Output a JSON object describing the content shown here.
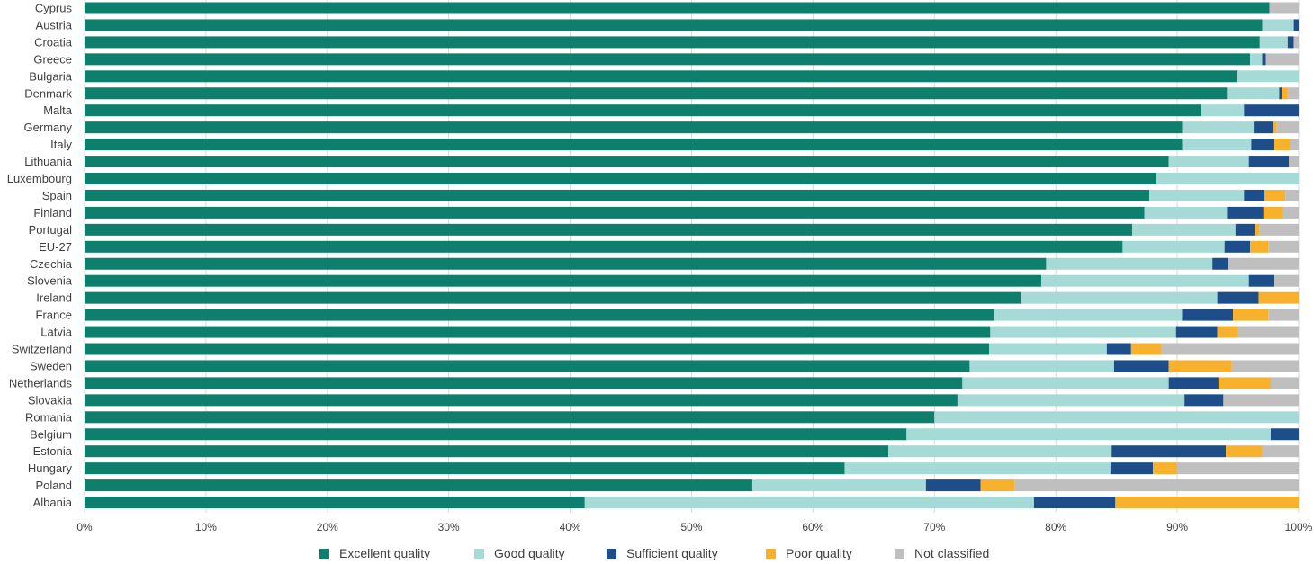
{
  "chart_data": {
    "type": "bar",
    "orientation": "horizontal",
    "stacked": true,
    "title": "",
    "xlabel": "",
    "ylabel": "",
    "xlim": [
      0,
      100
    ],
    "x_ticks": [
      "0%",
      "10%",
      "20%",
      "30%",
      "40%",
      "50%",
      "60%",
      "70%",
      "80%",
      "90%",
      "100%"
    ],
    "grid": true,
    "legend_position": "bottom",
    "categories": [
      "Cyprus",
      "Austria",
      "Croatia",
      "Greece",
      "Bulgaria",
      "Denmark",
      "Malta",
      "Germany",
      "Italy",
      "Lithuania",
      "Luxembourg",
      "Spain",
      "Finland",
      "Portugal",
      "EU-27",
      "Czechia",
      "Slovenia",
      "Ireland",
      "France",
      "Latvia",
      "Switzerland",
      "Sweden",
      "Netherlands",
      "Slovakia",
      "Romania",
      "Belgium",
      "Estonia",
      "Hungary",
      "Poland",
      "Albania"
    ],
    "series": [
      {
        "name": "Excellent quality",
        "color": "#0e7f6d",
        "values": [
          97.6,
          97.0,
          96.8,
          96.0,
          94.9,
          94.1,
          92.0,
          90.4,
          90.4,
          89.3,
          88.3,
          87.7,
          87.3,
          86.3,
          85.5,
          79.2,
          78.8,
          77.1,
          74.9,
          74.6,
          74.5,
          72.9,
          72.3,
          71.9,
          70.0,
          67.7,
          66.2,
          62.6,
          55.0,
          41.2
        ]
      },
      {
        "name": "Good quality",
        "color": "#a6dad6",
        "values": [
          0.0,
          2.6,
          2.3,
          1.0,
          5.1,
          4.3,
          3.5,
          5.9,
          5.7,
          6.6,
          11.7,
          7.8,
          6.8,
          8.5,
          8.4,
          13.7,
          17.1,
          16.2,
          15.5,
          15.3,
          9.7,
          11.9,
          17.0,
          18.7,
          30.0,
          30.0,
          18.4,
          21.9,
          14.3,
          37.0
        ]
      },
      {
        "name": "Sufficient quality",
        "color": "#1d4e89",
        "values": [
          0.0,
          0.4,
          0.5,
          0.3,
          0.0,
          0.2,
          4.5,
          1.6,
          1.9,
          3.3,
          0.0,
          1.7,
          3.0,
          1.6,
          2.1,
          1.3,
          2.1,
          3.4,
          4.2,
          3.4,
          2.0,
          4.5,
          4.1,
          3.2,
          0.0,
          2.3,
          9.4,
          3.5,
          4.5,
          6.7
        ]
      },
      {
        "name": "Poor quality",
        "color": "#f8b12c",
        "values": [
          0.0,
          0.0,
          0.0,
          0.0,
          0.0,
          0.5,
          0.0,
          0.3,
          1.3,
          0.0,
          0.0,
          1.7,
          1.6,
          0.4,
          1.5,
          0.0,
          0.0,
          3.3,
          2.9,
          1.7,
          2.5,
          5.2,
          4.3,
          0.0,
          0.0,
          0.0,
          3.0,
          2.0,
          2.8,
          15.1
        ]
      },
      {
        "name": "Not classified",
        "color": "#bfbfbf",
        "values": [
          2.4,
          0.0,
          0.4,
          2.7,
          0.0,
          0.9,
          0.0,
          1.8,
          0.7,
          0.8,
          0.0,
          1.1,
          1.3,
          3.2,
          2.5,
          5.8,
          2.0,
          0.0,
          2.5,
          5.0,
          11.3,
          5.5,
          2.3,
          6.2,
          0.0,
          0.0,
          3.0,
          10.0,
          23.4,
          0.0
        ]
      }
    ]
  }
}
